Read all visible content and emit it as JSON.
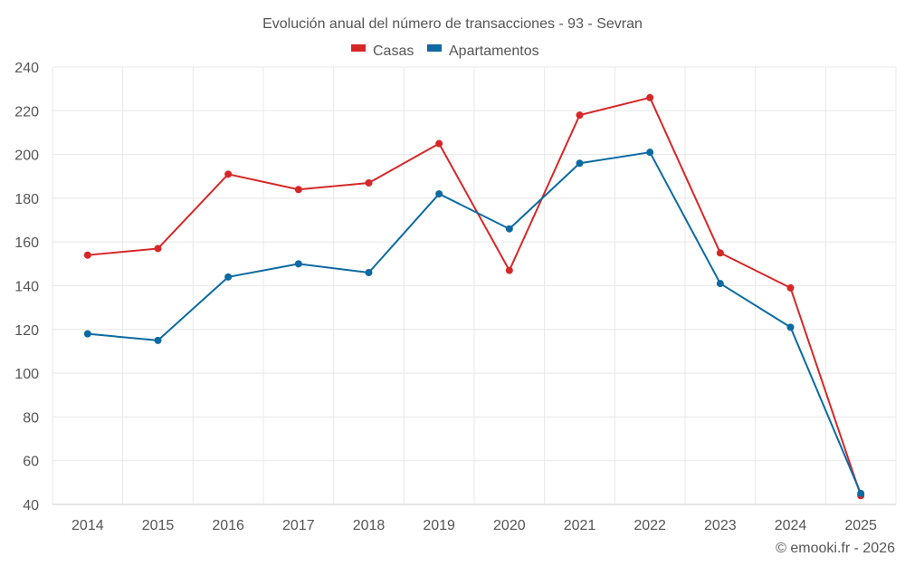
{
  "chart_data": {
    "type": "line",
    "title": "Evolución anual del número de transacciones - 93 - Sevran",
    "categories": [
      "2014",
      "2015",
      "2016",
      "2017",
      "2018",
      "2019",
      "2020",
      "2021",
      "2022",
      "2023",
      "2024",
      "2025"
    ],
    "series": [
      {
        "name": "Casas",
        "color": "#d62728",
        "values": [
          154,
          157,
          191,
          184,
          187,
          205,
          147,
          218,
          226,
          155,
          139,
          44
        ]
      },
      {
        "name": "Apartamentos",
        "color": "#0b6aa2",
        "values": [
          118,
          115,
          144,
          150,
          146,
          182,
          166,
          196,
          201,
          141,
          121,
          45
        ]
      }
    ],
    "y_ticks": [
      40,
      60,
      80,
      100,
      120,
      140,
      160,
      180,
      200,
      220,
      240
    ],
    "ylim": [
      40,
      240
    ],
    "xlabel": "",
    "ylabel": "",
    "grid": true,
    "legend_position": "top-center"
  },
  "footer": {
    "credit": "© emooki.fr - 2026"
  }
}
